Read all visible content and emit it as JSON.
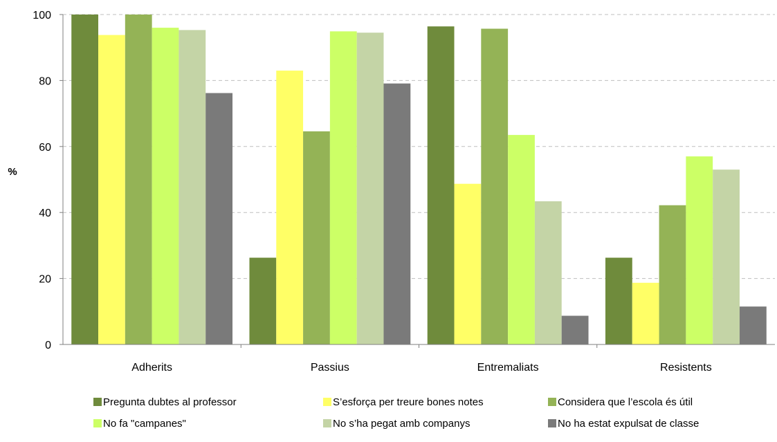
{
  "chart_data": {
    "type": "bar",
    "title": "",
    "xlabel": "",
    "ylabel": "%",
    "ylim": [
      0,
      100
    ],
    "yticks": [
      0,
      20,
      40,
      60,
      80,
      100
    ],
    "grid": true,
    "legend_placement": "bottom",
    "categories": [
      "Adherits",
      "Passius",
      "Entremaliats",
      "Resistents"
    ],
    "series": [
      {
        "name": "Pregunta dubtes al professor",
        "color": "#6f8b3c",
        "values": [
          100,
          26.3,
          96.4,
          26.3
        ]
      },
      {
        "name": "S’esforça per treure bones notes",
        "color": "#ffff66",
        "values": [
          93.8,
          83.0,
          48.7,
          18.7
        ]
      },
      {
        "name": "Considera que l’escola és útil",
        "color": "#94b356",
        "values": [
          100,
          64.6,
          95.7,
          42.2
        ]
      },
      {
        "name": "No fa \"campanes\"",
        "color": "#ccff66",
        "values": [
          96.0,
          94.9,
          63.5,
          57.0
        ]
      },
      {
        "name": "No s’ha pegat amb companys",
        "color": "#c4d4a6",
        "values": [
          95.3,
          94.5,
          43.4,
          53.0
        ]
      },
      {
        "name": "No ha estat expulsat de classe",
        "color": "#7a7a7a",
        "values": [
          76.2,
          79.1,
          8.7,
          11.5
        ]
      }
    ]
  }
}
